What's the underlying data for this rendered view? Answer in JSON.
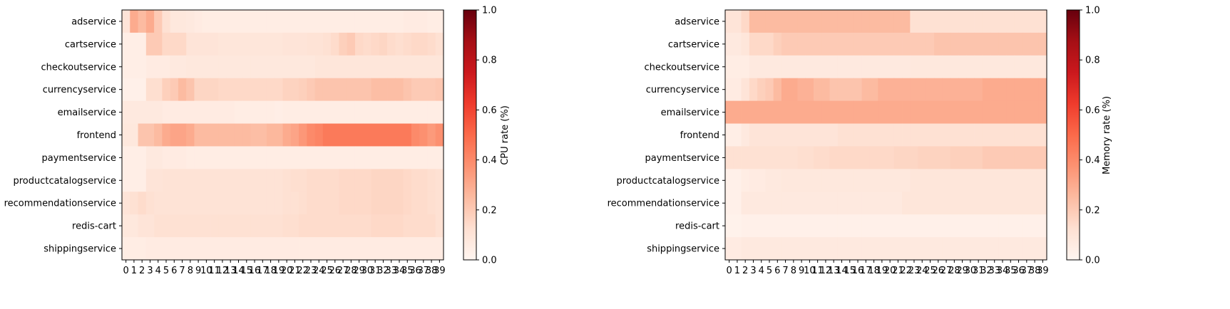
{
  "chart_data": [
    {
      "type": "heatmap",
      "title": "",
      "xlabel": "",
      "ylabel": "",
      "colorbar_label": "CPU rate (%)",
      "colormap": "Reds",
      "vmin": 0,
      "vmax": 1,
      "colorbar_ticks": [
        "0.0",
        "0.2",
        "0.4",
        "0.6",
        "0.8",
        "1.0"
      ],
      "x": [
        0,
        1,
        2,
        3,
        4,
        5,
        6,
        7,
        8,
        9,
        10,
        11,
        12,
        13,
        14,
        15,
        16,
        17,
        18,
        19,
        20,
        21,
        22,
        23,
        24,
        25,
        26,
        27,
        28,
        29,
        30,
        31,
        32,
        33,
        34,
        35,
        36,
        37,
        38,
        39
      ],
      "y": [
        "adservice",
        "cartservice",
        "checkoutservice",
        "currencyservice",
        "emailservice",
        "frontend",
        "paymentservice",
        "productcatalogservice",
        "recommendationservice",
        "redis-cart",
        "shippingservice"
      ],
      "values": [
        [
          0.1,
          0.3,
          0.25,
          0.3,
          0.2,
          0.12,
          0.08,
          0.08,
          0.07,
          0.06,
          0.05,
          0.05,
          0.05,
          0.05,
          0.05,
          0.05,
          0.05,
          0.05,
          0.05,
          0.05,
          0.05,
          0.05,
          0.05,
          0.05,
          0.05,
          0.05,
          0.05,
          0.05,
          0.05,
          0.05,
          0.05,
          0.05,
          0.05,
          0.05,
          0.05,
          0.06,
          0.06,
          0.06,
          0.05,
          0.05
        ],
        [
          0.04,
          0.04,
          0.04,
          0.2,
          0.2,
          0.15,
          0.15,
          0.15,
          0.1,
          0.1,
          0.1,
          0.1,
          0.09,
          0.09,
          0.09,
          0.09,
          0.09,
          0.09,
          0.09,
          0.09,
          0.1,
          0.1,
          0.1,
          0.11,
          0.11,
          0.12,
          0.14,
          0.18,
          0.2,
          0.15,
          0.14,
          0.15,
          0.16,
          0.14,
          0.13,
          0.14,
          0.15,
          0.15,
          0.14,
          0.12
        ],
        [
          0.04,
          0.04,
          0.04,
          0.06,
          0.06,
          0.06,
          0.07,
          0.07,
          0.08,
          0.08,
          0.08,
          0.08,
          0.08,
          0.08,
          0.08,
          0.08,
          0.08,
          0.08,
          0.08,
          0.08,
          0.08,
          0.08,
          0.08,
          0.08,
          0.09,
          0.09,
          0.09,
          0.09,
          0.09,
          0.09,
          0.09,
          0.09,
          0.09,
          0.09,
          0.09,
          0.09,
          0.09,
          0.09,
          0.09,
          0.09
        ],
        [
          0.03,
          0.03,
          0.03,
          0.13,
          0.13,
          0.18,
          0.2,
          0.25,
          0.22,
          0.16,
          0.16,
          0.16,
          0.15,
          0.15,
          0.15,
          0.15,
          0.15,
          0.15,
          0.15,
          0.15,
          0.17,
          0.17,
          0.18,
          0.2,
          0.22,
          0.22,
          0.22,
          0.22,
          0.22,
          0.22,
          0.22,
          0.24,
          0.24,
          0.24,
          0.24,
          0.22,
          0.2,
          0.2,
          0.2,
          0.21
        ],
        [
          0.07,
          0.07,
          0.07,
          0.07,
          0.07,
          0.06,
          0.06,
          0.06,
          0.06,
          0.06,
          0.06,
          0.06,
          0.06,
          0.06,
          0.05,
          0.05,
          0.05,
          0.05,
          0.05,
          0.04,
          0.05,
          0.05,
          0.05,
          0.05,
          0.05,
          0.05,
          0.05,
          0.05,
          0.05,
          0.05,
          0.05,
          0.05,
          0.05,
          0.05,
          0.05,
          0.05,
          0.05,
          0.05,
          0.05,
          0.05
        ],
        [
          0.08,
          0.08,
          0.22,
          0.22,
          0.25,
          0.3,
          0.32,
          0.32,
          0.3,
          0.25,
          0.25,
          0.25,
          0.25,
          0.25,
          0.25,
          0.25,
          0.24,
          0.24,
          0.26,
          0.26,
          0.3,
          0.32,
          0.36,
          0.4,
          0.42,
          0.45,
          0.45,
          0.45,
          0.45,
          0.45,
          0.45,
          0.45,
          0.45,
          0.45,
          0.45,
          0.45,
          0.4,
          0.38,
          0.35,
          0.38
        ],
        [
          0.04,
          0.04,
          0.04,
          0.07,
          0.07,
          0.06,
          0.06,
          0.06,
          0.05,
          0.05,
          0.05,
          0.05,
          0.05,
          0.05,
          0.05,
          0.05,
          0.05,
          0.05,
          0.05,
          0.05,
          0.05,
          0.05,
          0.05,
          0.05,
          0.05,
          0.05,
          0.05,
          0.05,
          0.05,
          0.05,
          0.05,
          0.05,
          0.05,
          0.05,
          0.05,
          0.05,
          0.05,
          0.05,
          0.05,
          0.05
        ],
        [
          0.04,
          0.04,
          0.04,
          0.1,
          0.1,
          0.11,
          0.11,
          0.11,
          0.11,
          0.11,
          0.11,
          0.11,
          0.11,
          0.11,
          0.11,
          0.11,
          0.11,
          0.11,
          0.11,
          0.11,
          0.12,
          0.13,
          0.13,
          0.14,
          0.14,
          0.14,
          0.14,
          0.15,
          0.15,
          0.15,
          0.15,
          0.16,
          0.16,
          0.16,
          0.16,
          0.15,
          0.14,
          0.14,
          0.13,
          0.12
        ],
        [
          0.1,
          0.12,
          0.14,
          0.12,
          0.11,
          0.11,
          0.11,
          0.11,
          0.11,
          0.11,
          0.11,
          0.11,
          0.11,
          0.11,
          0.11,
          0.11,
          0.11,
          0.11,
          0.11,
          0.11,
          0.12,
          0.12,
          0.13,
          0.14,
          0.14,
          0.14,
          0.14,
          0.15,
          0.15,
          0.15,
          0.15,
          0.16,
          0.16,
          0.16,
          0.16,
          0.15,
          0.14,
          0.14,
          0.13,
          0.12
        ],
        [
          0.08,
          0.08,
          0.1,
          0.1,
          0.12,
          0.12,
          0.12,
          0.12,
          0.12,
          0.12,
          0.12,
          0.12,
          0.12,
          0.12,
          0.12,
          0.12,
          0.12,
          0.12,
          0.12,
          0.12,
          0.13,
          0.13,
          0.14,
          0.14,
          0.14,
          0.14,
          0.14,
          0.14,
          0.14,
          0.14,
          0.14,
          0.15,
          0.15,
          0.15,
          0.15,
          0.14,
          0.14,
          0.14,
          0.14,
          0.12
        ],
        [
          0.05,
          0.05,
          0.05,
          0.06,
          0.06,
          0.06,
          0.06,
          0.06,
          0.06,
          0.06,
          0.06,
          0.06,
          0.06,
          0.06,
          0.06,
          0.06,
          0.06,
          0.06,
          0.06,
          0.06,
          0.06,
          0.06,
          0.06,
          0.06,
          0.06,
          0.06,
          0.06,
          0.06,
          0.06,
          0.06,
          0.06,
          0.06,
          0.06,
          0.06,
          0.06,
          0.06,
          0.06,
          0.06,
          0.06,
          0.06
        ]
      ]
    },
    {
      "type": "heatmap",
      "title": "",
      "xlabel": "",
      "ylabel": "",
      "colorbar_label": "Memory rate (%)",
      "colormap": "Reds",
      "vmin": 0,
      "vmax": 1,
      "colorbar_ticks": [
        "0.0",
        "0.2",
        "0.4",
        "0.6",
        "0.8",
        "1.0"
      ],
      "x": [
        0,
        1,
        2,
        3,
        4,
        5,
        6,
        7,
        8,
        9,
        10,
        11,
        12,
        13,
        14,
        15,
        16,
        17,
        18,
        19,
        20,
        21,
        22,
        23,
        24,
        25,
        26,
        27,
        28,
        29,
        30,
        31,
        32,
        33,
        34,
        35,
        36,
        37,
        38,
        39
      ],
      "y": [
        "adservice",
        "cartservice",
        "checkoutservice",
        "currencyservice",
        "emailservice",
        "frontend",
        "paymentservice",
        "productcatalogservice",
        "recommendationservice",
        "redis-cart",
        "shippingservice"
      ],
      "values": [
        [
          0.1,
          0.1,
          0.15,
          0.25,
          0.25,
          0.25,
          0.25,
          0.25,
          0.25,
          0.25,
          0.25,
          0.25,
          0.25,
          0.25,
          0.25,
          0.25,
          0.25,
          0.25,
          0.25,
          0.25,
          0.25,
          0.25,
          0.25,
          0.12,
          0.12,
          0.12,
          0.12,
          0.12,
          0.12,
          0.12,
          0.12,
          0.12,
          0.12,
          0.12,
          0.12,
          0.12,
          0.12,
          0.12,
          0.12,
          0.12
        ],
        [
          0.07,
          0.07,
          0.09,
          0.15,
          0.15,
          0.15,
          0.18,
          0.2,
          0.2,
          0.2,
          0.2,
          0.2,
          0.2,
          0.2,
          0.2,
          0.2,
          0.2,
          0.2,
          0.2,
          0.2,
          0.2,
          0.2,
          0.2,
          0.2,
          0.2,
          0.2,
          0.22,
          0.22,
          0.22,
          0.22,
          0.22,
          0.22,
          0.22,
          0.22,
          0.22,
          0.22,
          0.22,
          0.22,
          0.22,
          0.22
        ],
        [
          0.05,
          0.05,
          0.05,
          0.07,
          0.07,
          0.07,
          0.07,
          0.07,
          0.07,
          0.07,
          0.07,
          0.07,
          0.07,
          0.07,
          0.07,
          0.07,
          0.07,
          0.07,
          0.07,
          0.07,
          0.07,
          0.07,
          0.07,
          0.08,
          0.08,
          0.08,
          0.08,
          0.08,
          0.08,
          0.08,
          0.08,
          0.08,
          0.08,
          0.08,
          0.08,
          0.08,
          0.08,
          0.08,
          0.08,
          0.08
        ],
        [
          0.06,
          0.06,
          0.1,
          0.15,
          0.18,
          0.2,
          0.25,
          0.3,
          0.3,
          0.28,
          0.28,
          0.25,
          0.25,
          0.22,
          0.22,
          0.22,
          0.22,
          0.25,
          0.25,
          0.28,
          0.28,
          0.28,
          0.28,
          0.28,
          0.28,
          0.28,
          0.28,
          0.28,
          0.28,
          0.28,
          0.28,
          0.28,
          0.3,
          0.3,
          0.3,
          0.3,
          0.3,
          0.3,
          0.3,
          0.3
        ],
        [
          0.3,
          0.3,
          0.3,
          0.3,
          0.3,
          0.3,
          0.3,
          0.3,
          0.3,
          0.3,
          0.3,
          0.3,
          0.3,
          0.3,
          0.3,
          0.3,
          0.3,
          0.3,
          0.3,
          0.3,
          0.3,
          0.3,
          0.3,
          0.3,
          0.3,
          0.3,
          0.3,
          0.3,
          0.3,
          0.3,
          0.3,
          0.3,
          0.3,
          0.3,
          0.3,
          0.3,
          0.3,
          0.3,
          0.3,
          0.3
        ],
        [
          0.04,
          0.04,
          0.07,
          0.1,
          0.1,
          0.1,
          0.1,
          0.1,
          0.1,
          0.1,
          0.1,
          0.1,
          0.1,
          0.1,
          0.12,
          0.12,
          0.12,
          0.12,
          0.12,
          0.12,
          0.12,
          0.12,
          0.12,
          0.12,
          0.12,
          0.12,
          0.12,
          0.12,
          0.12,
          0.12,
          0.12,
          0.12,
          0.12,
          0.12,
          0.12,
          0.12,
          0.12,
          0.12,
          0.12,
          0.12
        ],
        [
          0.12,
          0.12,
          0.12,
          0.12,
          0.12,
          0.12,
          0.12,
          0.12,
          0.12,
          0.13,
          0.13,
          0.14,
          0.14,
          0.15,
          0.15,
          0.15,
          0.15,
          0.15,
          0.15,
          0.15,
          0.15,
          0.16,
          0.16,
          0.16,
          0.17,
          0.17,
          0.17,
          0.17,
          0.18,
          0.18,
          0.18,
          0.18,
          0.2,
          0.2,
          0.2,
          0.2,
          0.2,
          0.2,
          0.2,
          0.2
        ],
        [
          0.03,
          0.03,
          0.05,
          0.06,
          0.06,
          0.07,
          0.07,
          0.08,
          0.08,
          0.08,
          0.08,
          0.08,
          0.08,
          0.08,
          0.08,
          0.08,
          0.08,
          0.08,
          0.08,
          0.08,
          0.08,
          0.08,
          0.08,
          0.09,
          0.09,
          0.09,
          0.09,
          0.09,
          0.09,
          0.09,
          0.09,
          0.09,
          0.09,
          0.09,
          0.09,
          0.09,
          0.09,
          0.09,
          0.09,
          0.09
        ],
        [
          0.03,
          0.03,
          0.07,
          0.07,
          0.07,
          0.07,
          0.07,
          0.07,
          0.07,
          0.07,
          0.07,
          0.07,
          0.07,
          0.07,
          0.07,
          0.07,
          0.07,
          0.07,
          0.07,
          0.07,
          0.07,
          0.07,
          0.09,
          0.09,
          0.09,
          0.09,
          0.09,
          0.09,
          0.09,
          0.09,
          0.09,
          0.09,
          0.09,
          0.09,
          0.09,
          0.09,
          0.09,
          0.09,
          0.09,
          0.09
        ],
        [
          0.02,
          0.02,
          0.03,
          0.03,
          0.03,
          0.03,
          0.03,
          0.03,
          0.03,
          0.03,
          0.03,
          0.03,
          0.03,
          0.03,
          0.03,
          0.03,
          0.03,
          0.03,
          0.03,
          0.03,
          0.03,
          0.03,
          0.03,
          0.03,
          0.03,
          0.03,
          0.03,
          0.03,
          0.03,
          0.03,
          0.03,
          0.03,
          0.03,
          0.03,
          0.03,
          0.03,
          0.03,
          0.03,
          0.03,
          0.03
        ],
        [
          0.06,
          0.06,
          0.07,
          0.07,
          0.07,
          0.07,
          0.07,
          0.07,
          0.07,
          0.07,
          0.07,
          0.07,
          0.07,
          0.07,
          0.07,
          0.07,
          0.07,
          0.07,
          0.07,
          0.07,
          0.07,
          0.07,
          0.07,
          0.07,
          0.07,
          0.07,
          0.07,
          0.07,
          0.07,
          0.07,
          0.07,
          0.07,
          0.07,
          0.07,
          0.07,
          0.07,
          0.07,
          0.07,
          0.07,
          0.07
        ]
      ]
    }
  ]
}
